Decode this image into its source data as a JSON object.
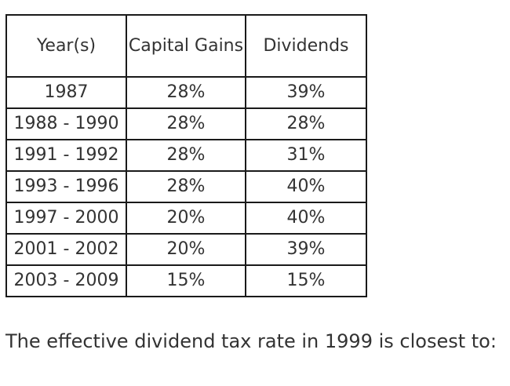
{
  "table": {
    "headers": {
      "year": "Year(s)",
      "capital_gains": "Capital Gains",
      "dividends": "Dividends"
    },
    "rows": [
      {
        "years": "1987",
        "capital_gains": "28%",
        "dividends": "39%"
      },
      {
        "years": "1988 - 1990",
        "capital_gains": "28%",
        "dividends": "28%"
      },
      {
        "years": "1991 - 1992",
        "capital_gains": "28%",
        "dividends": "31%"
      },
      {
        "years": "1993 - 1996",
        "capital_gains": "28%",
        "dividends": "40%"
      },
      {
        "years": "1997 - 2000",
        "capital_gains": "20%",
        "dividends": "40%"
      },
      {
        "years": "2001 - 2002",
        "capital_gains": "20%",
        "dividends": "39%"
      },
      {
        "years": "2003 - 2009",
        "capital_gains": "15%",
        "dividends": "15%"
      }
    ]
  },
  "question": "The effective dividend tax rate in 1999 is closest to:"
}
